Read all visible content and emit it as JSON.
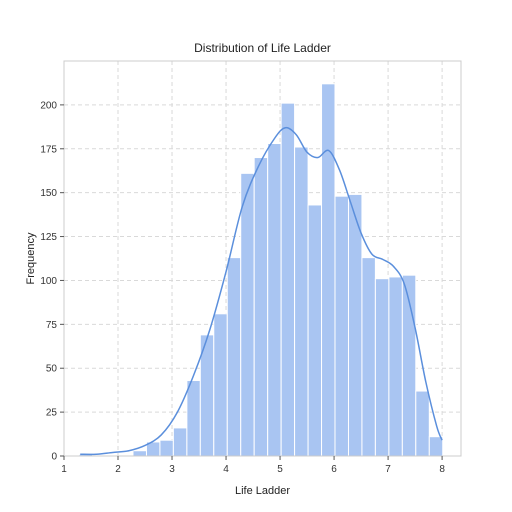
{
  "chart_data": {
    "type": "bar",
    "title": "Distribution of Life Ladder",
    "xlabel": "Life Ladder",
    "ylabel": "Frequency",
    "xlim": [
      1.0,
      8.35
    ],
    "ylim": [
      0,
      225
    ],
    "xticks": [
      1,
      2,
      3,
      4,
      5,
      6,
      7,
      8
    ],
    "yticks": [
      0,
      25,
      50,
      75,
      100,
      125,
      150,
      175,
      200
    ],
    "grid": true,
    "bar_color": "#a9c5f2",
    "kde_color": "#5b8fdc",
    "bin_edges": [
      1.28,
      1.529,
      1.779,
      2.028,
      2.277,
      2.527,
      2.776,
      3.025,
      3.275,
      3.524,
      3.773,
      4.023,
      4.272,
      4.521,
      4.771,
      5.02,
      5.269,
      5.519,
      5.768,
      6.017,
      6.267,
      6.516,
      6.765,
      7.015,
      7.264,
      7.513,
      7.763,
      8.012
    ],
    "counts": [
      1,
      0,
      0,
      0,
      3,
      8,
      9,
      16,
      43,
      69,
      81,
      113,
      161,
      170,
      178,
      201,
      176,
      143,
      212,
      148,
      149,
      113,
      101,
      102,
      103,
      37,
      11
    ],
    "kde": {
      "x": [
        1.3,
        1.6,
        1.9,
        2.2,
        2.5,
        2.8,
        3.1,
        3.4,
        3.7,
        4.0,
        4.3,
        4.6,
        4.9,
        5.1,
        5.3,
        5.5,
        5.7,
        5.9,
        6.1,
        6.3,
        6.5,
        6.7,
        6.9,
        7.1,
        7.3,
        7.5,
        7.7,
        7.9,
        8.0
      ],
      "y": [
        1,
        1,
        2,
        3,
        6,
        12,
        25,
        46,
        72,
        105,
        142,
        165,
        181,
        187,
        183,
        173,
        170,
        174,
        163,
        145,
        127,
        115,
        112,
        108,
        98,
        73,
        42,
        17,
        9
      ]
    }
  }
}
